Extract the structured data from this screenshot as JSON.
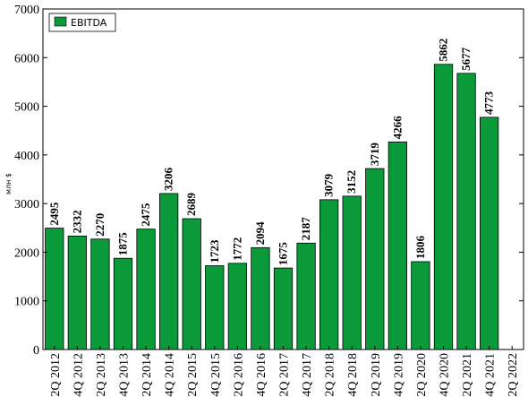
{
  "chart_data": {
    "type": "bar",
    "title": "",
    "xlabel": "",
    "ylabel": "млн $",
    "ylim": [
      0,
      7000
    ],
    "yticks": [
      0,
      1000,
      2000,
      3000,
      4000,
      5000,
      6000,
      7000
    ],
    "grid": false,
    "legend_position": "top-left",
    "bar_color": "#0a9a3a",
    "categories": [
      "2Q 2012",
      "4Q 2012",
      "2Q 2013",
      "4Q 2013",
      "2Q 2014",
      "4Q 2014",
      "2Q 2015",
      "4Q 2015",
      "2Q 2016",
      "4Q 2016",
      "2Q 2017",
      "4Q 2017",
      "2Q 2018",
      "4Q 2018",
      "2Q 2019",
      "4Q 2019",
      "2Q 2020",
      "4Q 2020",
      "2Q 2021",
      "4Q 2021",
      "2Q 2022"
    ],
    "series": [
      {
        "name": "EBITDA",
        "values": [
          2495,
          2332,
          2270,
          1875,
          2475,
          3206,
          2689,
          1723,
          1772,
          2094,
          1675,
          2187,
          3079,
          3152,
          3719,
          4266,
          1806,
          5862,
          5677,
          4773,
          null
        ]
      }
    ]
  }
}
